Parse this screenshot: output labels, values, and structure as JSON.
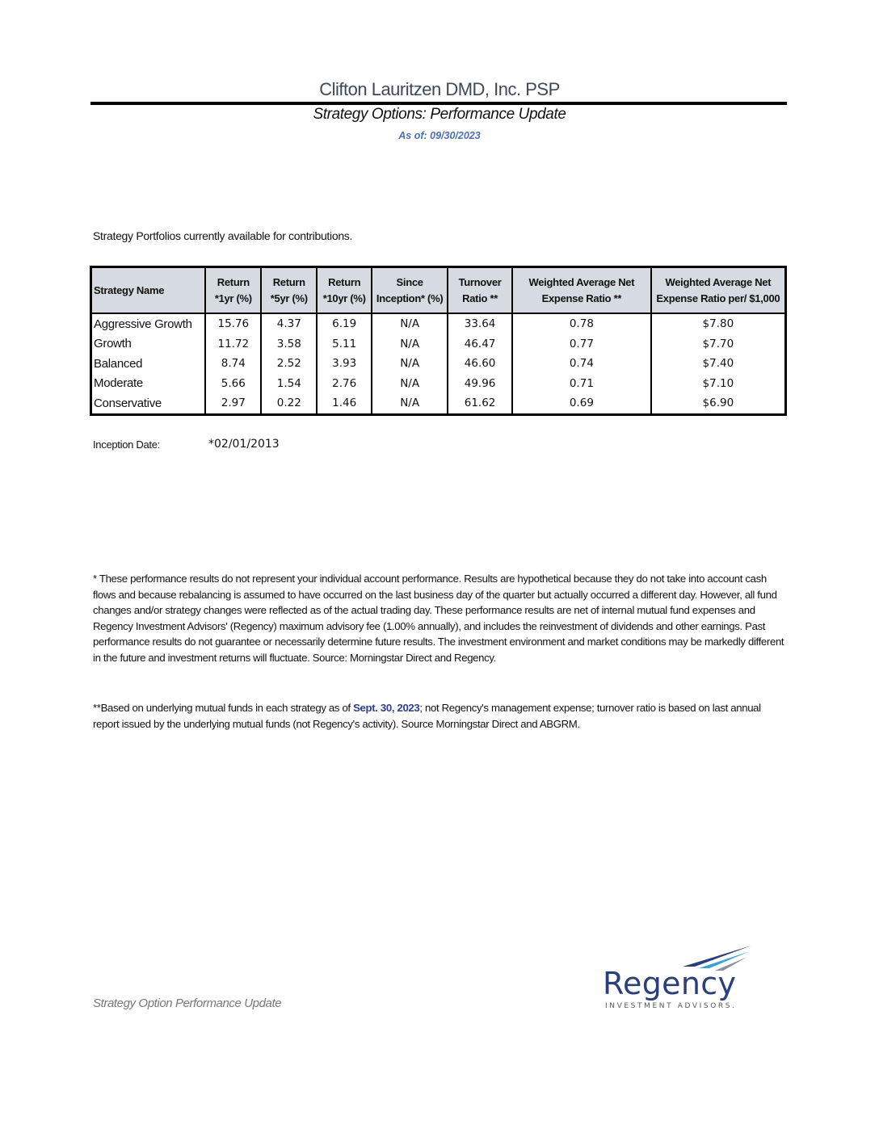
{
  "header": {
    "title": "Clifton Lauritzen DMD, Inc. PSP",
    "subtitle": "Strategy Options: Performance Update",
    "as_of": "As of: 09/30/2023"
  },
  "intro": "Strategy Portfolios currently available for contributions.",
  "table": {
    "columns": [
      "Strategy Name",
      "Return *1yr (%)",
      "Return *5yr (%)",
      "Return *10yr (%)",
      "Since Inception* (%)",
      "Turnover Ratio **",
      "Weighted Average Net Expense Ratio **",
      "Weighted Average Net Expense Ratio per/ $1,000"
    ],
    "rows": [
      [
        "Aggressive Growth",
        "15.76",
        "4.37",
        "6.19",
        "N/A",
        "33.64",
        "0.78",
        "$7.80"
      ],
      [
        "Growth",
        "11.72",
        "3.58",
        "5.11",
        "N/A",
        "46.47",
        "0.77",
        "$7.70"
      ],
      [
        "Balanced",
        "8.74",
        "2.52",
        "3.93",
        "N/A",
        "46.60",
        "0.74",
        "$7.40"
      ],
      [
        "Moderate",
        "5.66",
        "1.54",
        "2.76",
        "N/A",
        "49.96",
        "0.71",
        "$7.10"
      ],
      [
        "Conservative",
        "2.97",
        "0.22",
        "1.46",
        "N/A",
        "61.62",
        "0.69",
        "$6.90"
      ]
    ]
  },
  "inception": {
    "label": "Inception Date:",
    "value": "*02/01/2013"
  },
  "footnote1": "* These performance results do not represent your individual account performance.  Results are hypothetical because they do not take into account cash flows and because rebalancing is assumed to have occurred on the last business day of the quarter but actually occurred a different day. However, all fund changes and/or strategy changes were reflected as of the actual trading day. These performance results are net of internal mutual fund expenses and Regency Investment Advisors' (Regency) maximum advisory fee (1.00% annually), and includes the reinvestment of dividends and other earnings.  Past performance results do not guarantee or necessarily determine future results.  The investment environment and market conditions may be markedly different in the future and investment returns will fluctuate. Source: Morningstar Direct and Regency.",
  "footnote2": {
    "pre": "**Based on underlying mutual funds in each strategy as of ",
    "date": "Sept. 30, 2023",
    "post": "; not Regency's management expense; turnover ratio is based on last annual report  issued by the underlying mutual funds (not Regency's activity). Source Morningstar Direct and ABGRM."
  },
  "footer": "Strategy Option Performance Update",
  "logo": {
    "name": "Regency",
    "tagline": "INVESTMENT ADVISORS."
  },
  "colors": {
    "brand": "#2b3f7a",
    "accent": "#4a6fb5",
    "header_bg": "#d6dbe2"
  }
}
